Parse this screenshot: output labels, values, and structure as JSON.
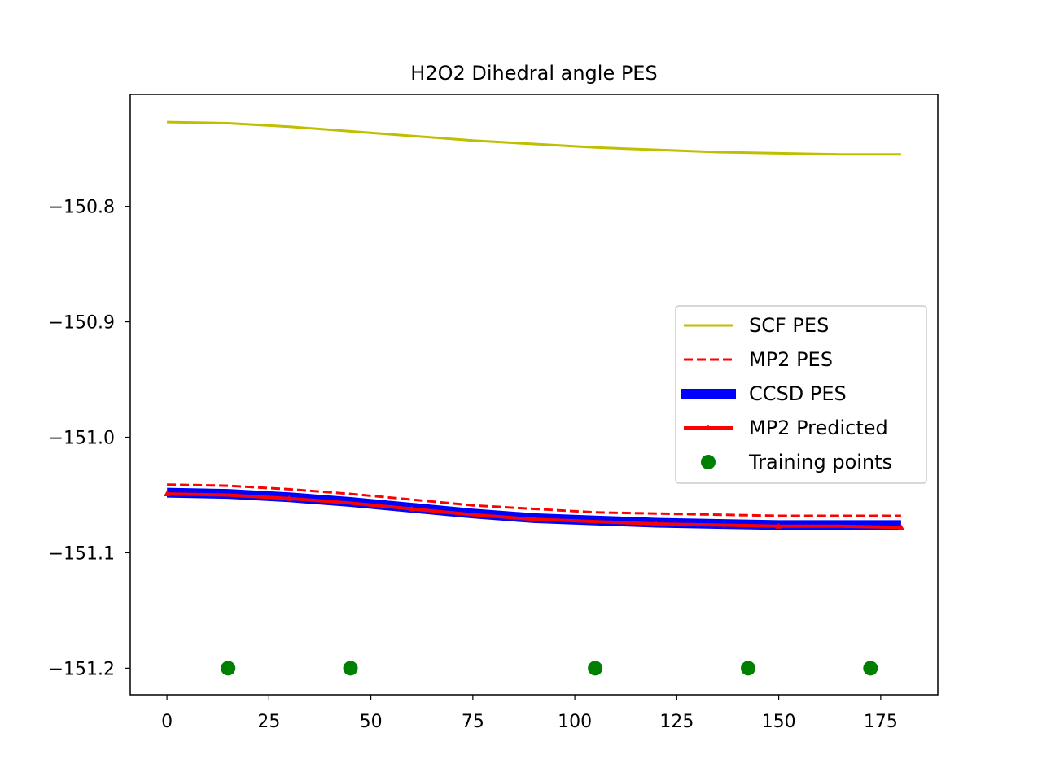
{
  "chart_data": {
    "type": "line",
    "title": "H2O2 Dihedral angle PES",
    "xlabel": "",
    "ylabel": "",
    "xlim": [
      -9,
      189
    ],
    "ylim": [
      -151.223,
      -150.703
    ],
    "x_ticks": [
      0,
      25,
      50,
      75,
      100,
      125,
      150,
      175
    ],
    "x_tick_labels": [
      "0",
      "25",
      "50",
      "75",
      "100",
      "125",
      "150",
      "175"
    ],
    "y_ticks": [
      -150.8,
      -150.9,
      -151.0,
      -151.1,
      -151.2
    ],
    "y_tick_labels": [
      "−150.8",
      "−150.9",
      "−151.0",
      "−151.1",
      "−151.2"
    ],
    "grid": false,
    "legend_position": "center-right",
    "series": [
      {
        "name": "SCF PES",
        "color": "#bfbf00",
        "style": "solid",
        "x": [
          0,
          15,
          30,
          45,
          60,
          75,
          90,
          105,
          120,
          135,
          150,
          165,
          180
        ],
        "y": [
          -150.727,
          -150.728,
          -150.731,
          -150.735,
          -150.739,
          -150.743,
          -150.746,
          -150.749,
          -150.751,
          -150.753,
          -150.754,
          -150.755,
          -150.755
        ]
      },
      {
        "name": "MP2 PES",
        "color": "#ff0000",
        "style": "dashed",
        "x": [
          0,
          15,
          30,
          45,
          60,
          75,
          90,
          105,
          120,
          135,
          150,
          165,
          180
        ],
        "y": [
          -151.041,
          -151.042,
          -151.045,
          -151.049,
          -151.054,
          -151.059,
          -151.062,
          -151.065,
          -151.066,
          -151.067,
          -151.068,
          -151.068,
          -151.068
        ]
      },
      {
        "name": "CCSD PES",
        "color": "#0000ff",
        "style": "thick",
        "x": [
          0,
          15,
          30,
          45,
          60,
          75,
          90,
          105,
          120,
          135,
          150,
          165,
          180
        ],
        "y": [
          -151.048,
          -151.049,
          -151.052,
          -151.056,
          -151.061,
          -151.066,
          -151.07,
          -151.072,
          -151.074,
          -151.075,
          -151.076,
          -151.076,
          -151.076
        ]
      },
      {
        "name": "MP2 Predicted",
        "color": "#ff0000",
        "style": "solid-marker",
        "x": [
          0,
          15,
          30,
          45,
          60,
          75,
          90,
          105,
          120,
          135,
          150,
          165,
          180
        ],
        "y": [
          -151.049,
          -151.05,
          -151.053,
          -151.057,
          -151.062,
          -151.067,
          -151.071,
          -151.073,
          -151.075,
          -151.076,
          -151.077,
          -151.077,
          -151.078
        ],
        "marker_x": [
          0,
          30,
          60,
          90,
          120,
          150,
          180
        ]
      },
      {
        "name": "Training points",
        "color": "#008000",
        "style": "points",
        "x": [
          15,
          45,
          105,
          142.5,
          172.5
        ],
        "y": [
          -151.2,
          -151.2,
          -151.2,
          -151.2,
          -151.2
        ]
      }
    ]
  }
}
